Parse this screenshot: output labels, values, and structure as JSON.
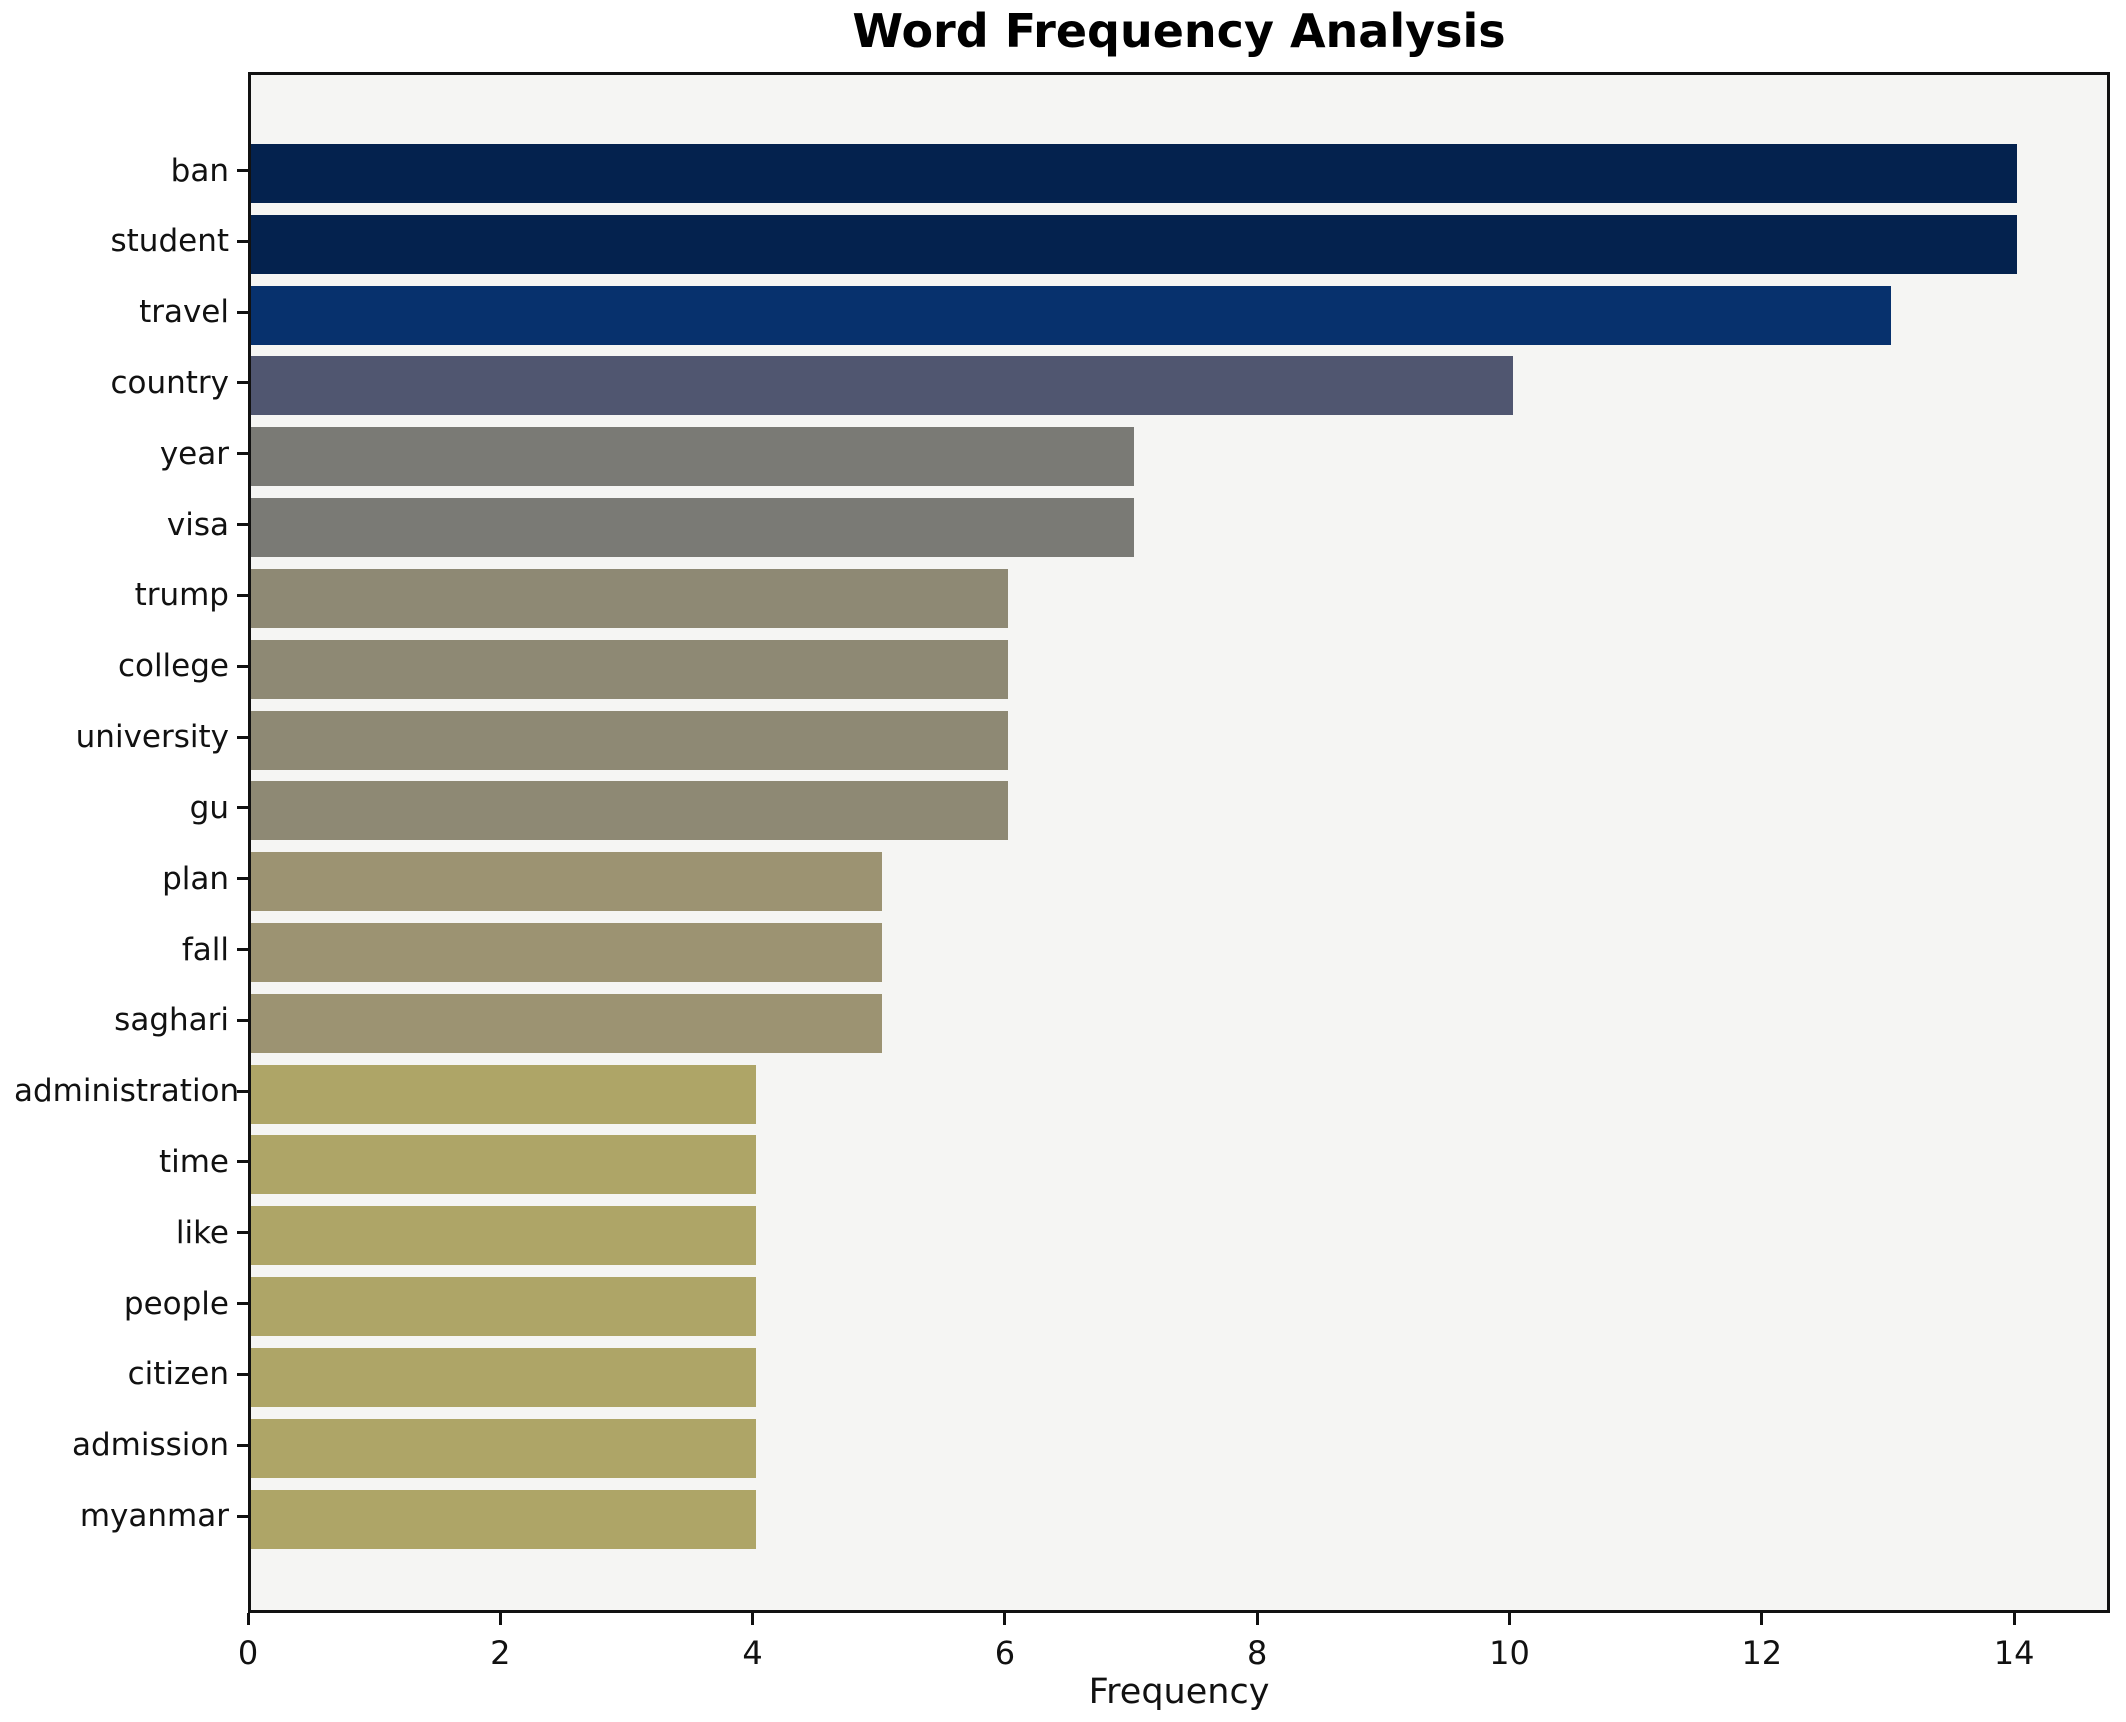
{
  "chart_data": {
    "type": "bar",
    "orientation": "horizontal",
    "title": "Word Frequency Analysis",
    "xlabel": "Frequency",
    "ylabel": "",
    "categories": [
      "ban",
      "student",
      "travel",
      "country",
      "year",
      "visa",
      "trump",
      "college",
      "university",
      "gu",
      "plan",
      "fall",
      "saghari",
      "administration",
      "time",
      "like",
      "people",
      "citizen",
      "admission",
      "myanmar"
    ],
    "values": [
      14,
      14,
      13,
      10,
      7,
      7,
      6,
      6,
      6,
      6,
      5,
      5,
      5,
      4,
      4,
      4,
      4,
      4,
      4,
      4
    ],
    "bar_colors": [
      "#04224e",
      "#04224e",
      "#07316d",
      "#505670",
      "#7a7a75",
      "#7a7a75",
      "#8e8974",
      "#8e8974",
      "#8e8974",
      "#8e8974",
      "#9c9372",
      "#9c9372",
      "#9c9372",
      "#aea567",
      "#aea567",
      "#aea567",
      "#aea567",
      "#aea567",
      "#aea567",
      "#aea567"
    ],
    "x_ticks": [
      0,
      2,
      4,
      6,
      8,
      10,
      12,
      14
    ],
    "xlim": [
      0,
      14.76
    ],
    "ylim_note": "categories top-to-bottom by descending frequency",
    "grid": false,
    "legend": "none",
    "plot_bg": "#f5f5f3",
    "page_bg": "#ffffff",
    "spine_color": "#111111",
    "text_color": "#111111"
  }
}
